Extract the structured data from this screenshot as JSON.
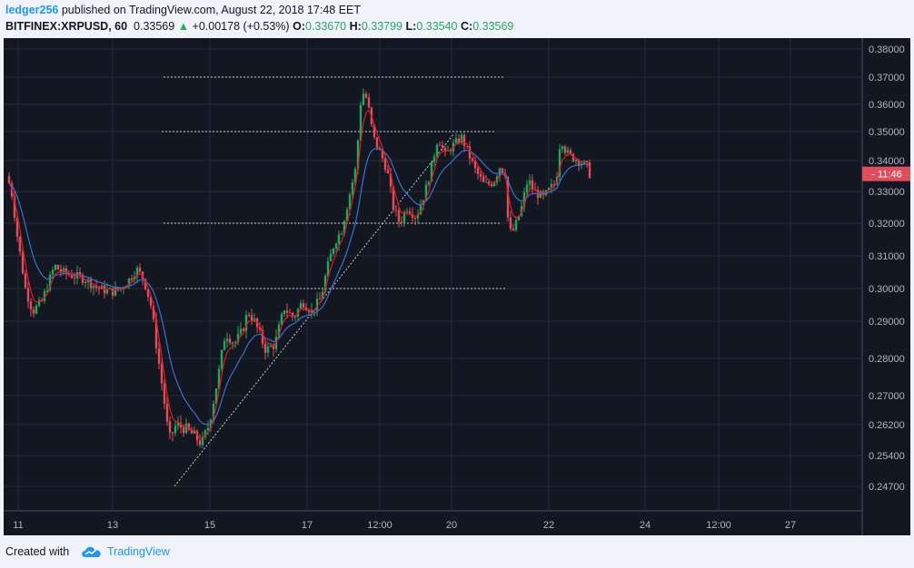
{
  "header": {
    "user": "ledger256",
    "published_text": " published on TradingView.com, August 22, 2018 17:48 EET",
    "symbol": "BITFINEX:XRPUSD, 60",
    "last": "0.33569",
    "arrow": "▲",
    "change": "+0.00178 (+0.53%)",
    "o_label": "O:",
    "o_value": "0.33670",
    "h_label": "H:",
    "h_value": "0.33799",
    "l_label": "L:",
    "l_value": "0.33540",
    "c_label": "C:",
    "c_value": "0.33569"
  },
  "colors": {
    "up": "#26a65b",
    "down": "#e04e5c",
    "bg": "#131722",
    "ema_fast": "#e01b24",
    "ema_slow": "#3c6fd1"
  },
  "price_axis": {
    "ticks": [
      "0.38000",
      "0.37000",
      "0.36000",
      "0.35000",
      "0.34000",
      "0.33000",
      "0.32000",
      "0.31000",
      "0.30000",
      "0.29000",
      "0.28000",
      "0.27000",
      "0.26200",
      "0.25400",
      "0.24700"
    ],
    "current_label": "11:46"
  },
  "time_axis": {
    "ticks": [
      "11",
      "13",
      "15",
      "17",
      "12:00",
      "20",
      "22",
      "24",
      "12:00",
      "27"
    ]
  },
  "chart_data": {
    "type": "candlestick",
    "symbol": "BITFINEX:XRPUSD",
    "interval": "60",
    "y_ticks": [
      0.38,
      0.37,
      0.36,
      0.35,
      0.34,
      0.33,
      0.32,
      0.31,
      0.3,
      0.29,
      0.28,
      0.27,
      0.262,
      0.254,
      0.247
    ],
    "anchors": [
      [
        0,
        0.335
      ],
      [
        6,
        0.328
      ],
      [
        10,
        0.318
      ],
      [
        20,
        0.3
      ],
      [
        28,
        0.293
      ],
      [
        38,
        0.296
      ],
      [
        52,
        0.307
      ],
      [
        60,
        0.305
      ],
      [
        72,
        0.304
      ],
      [
        85,
        0.303
      ],
      [
        100,
        0.3
      ],
      [
        115,
        0.299
      ],
      [
        125,
        0.3
      ],
      [
        135,
        0.303
      ],
      [
        142,
        0.306
      ],
      [
        150,
        0.303
      ],
      [
        158,
        0.295
      ],
      [
        165,
        0.282
      ],
      [
        172,
        0.27
      ],
      [
        178,
        0.258
      ],
      [
        186,
        0.262
      ],
      [
        196,
        0.261
      ],
      [
        206,
        0.259
      ],
      [
        214,
        0.257
      ],
      [
        222,
        0.262
      ],
      [
        232,
        0.275
      ],
      [
        240,
        0.287
      ],
      [
        250,
        0.284
      ],
      [
        258,
        0.287
      ],
      [
        265,
        0.293
      ],
      [
        272,
        0.29
      ],
      [
        285,
        0.282
      ],
      [
        295,
        0.284
      ],
      [
        305,
        0.294
      ],
      [
        315,
        0.291
      ],
      [
        325,
        0.296
      ],
      [
        335,
        0.293
      ],
      [
        345,
        0.297
      ],
      [
        352,
        0.306
      ],
      [
        360,
        0.314
      ],
      [
        368,
        0.318
      ],
      [
        376,
        0.328
      ],
      [
        384,
        0.338
      ],
      [
        390,
        0.365
      ],
      [
        396,
        0.362
      ],
      [
        403,
        0.348
      ],
      [
        410,
        0.343
      ],
      [
        418,
        0.337
      ],
      [
        425,
        0.325
      ],
      [
        432,
        0.32
      ],
      [
        440,
        0.325
      ],
      [
        450,
        0.322
      ],
      [
        460,
        0.33
      ],
      [
        467,
        0.338
      ],
      [
        474,
        0.348
      ],
      [
        482,
        0.342
      ],
      [
        490,
        0.345
      ],
      [
        500,
        0.348
      ],
      [
        508,
        0.342
      ],
      [
        515,
        0.337
      ],
      [
        525,
        0.332
      ],
      [
        535,
        0.333
      ],
      [
        542,
        0.338
      ],
      [
        548,
        0.336
      ],
      [
        552,
        0.317
      ],
      [
        558,
        0.318
      ],
      [
        566,
        0.325
      ],
      [
        573,
        0.334
      ],
      [
        580,
        0.33
      ],
      [
        590,
        0.328
      ],
      [
        598,
        0.331
      ],
      [
        604,
        0.333
      ],
      [
        609,
        0.348
      ],
      [
        615,
        0.343
      ],
      [
        622,
        0.341
      ],
      [
        630,
        0.34
      ],
      [
        638,
        0.338
      ],
      [
        641,
        0.3357
      ]
    ],
    "horizontal_levels": [
      0.37,
      0.35,
      0.32,
      0.3
    ],
    "trendline": {
      "start": [
        188,
        0.247
      ],
      "end": [
        495,
        0.349
      ]
    },
    "indicators": [
      "EMA fast",
      "EMA slow"
    ],
    "last_price": 0.33569
  },
  "footer": {
    "created": "Created with",
    "brand": "TradingView"
  }
}
